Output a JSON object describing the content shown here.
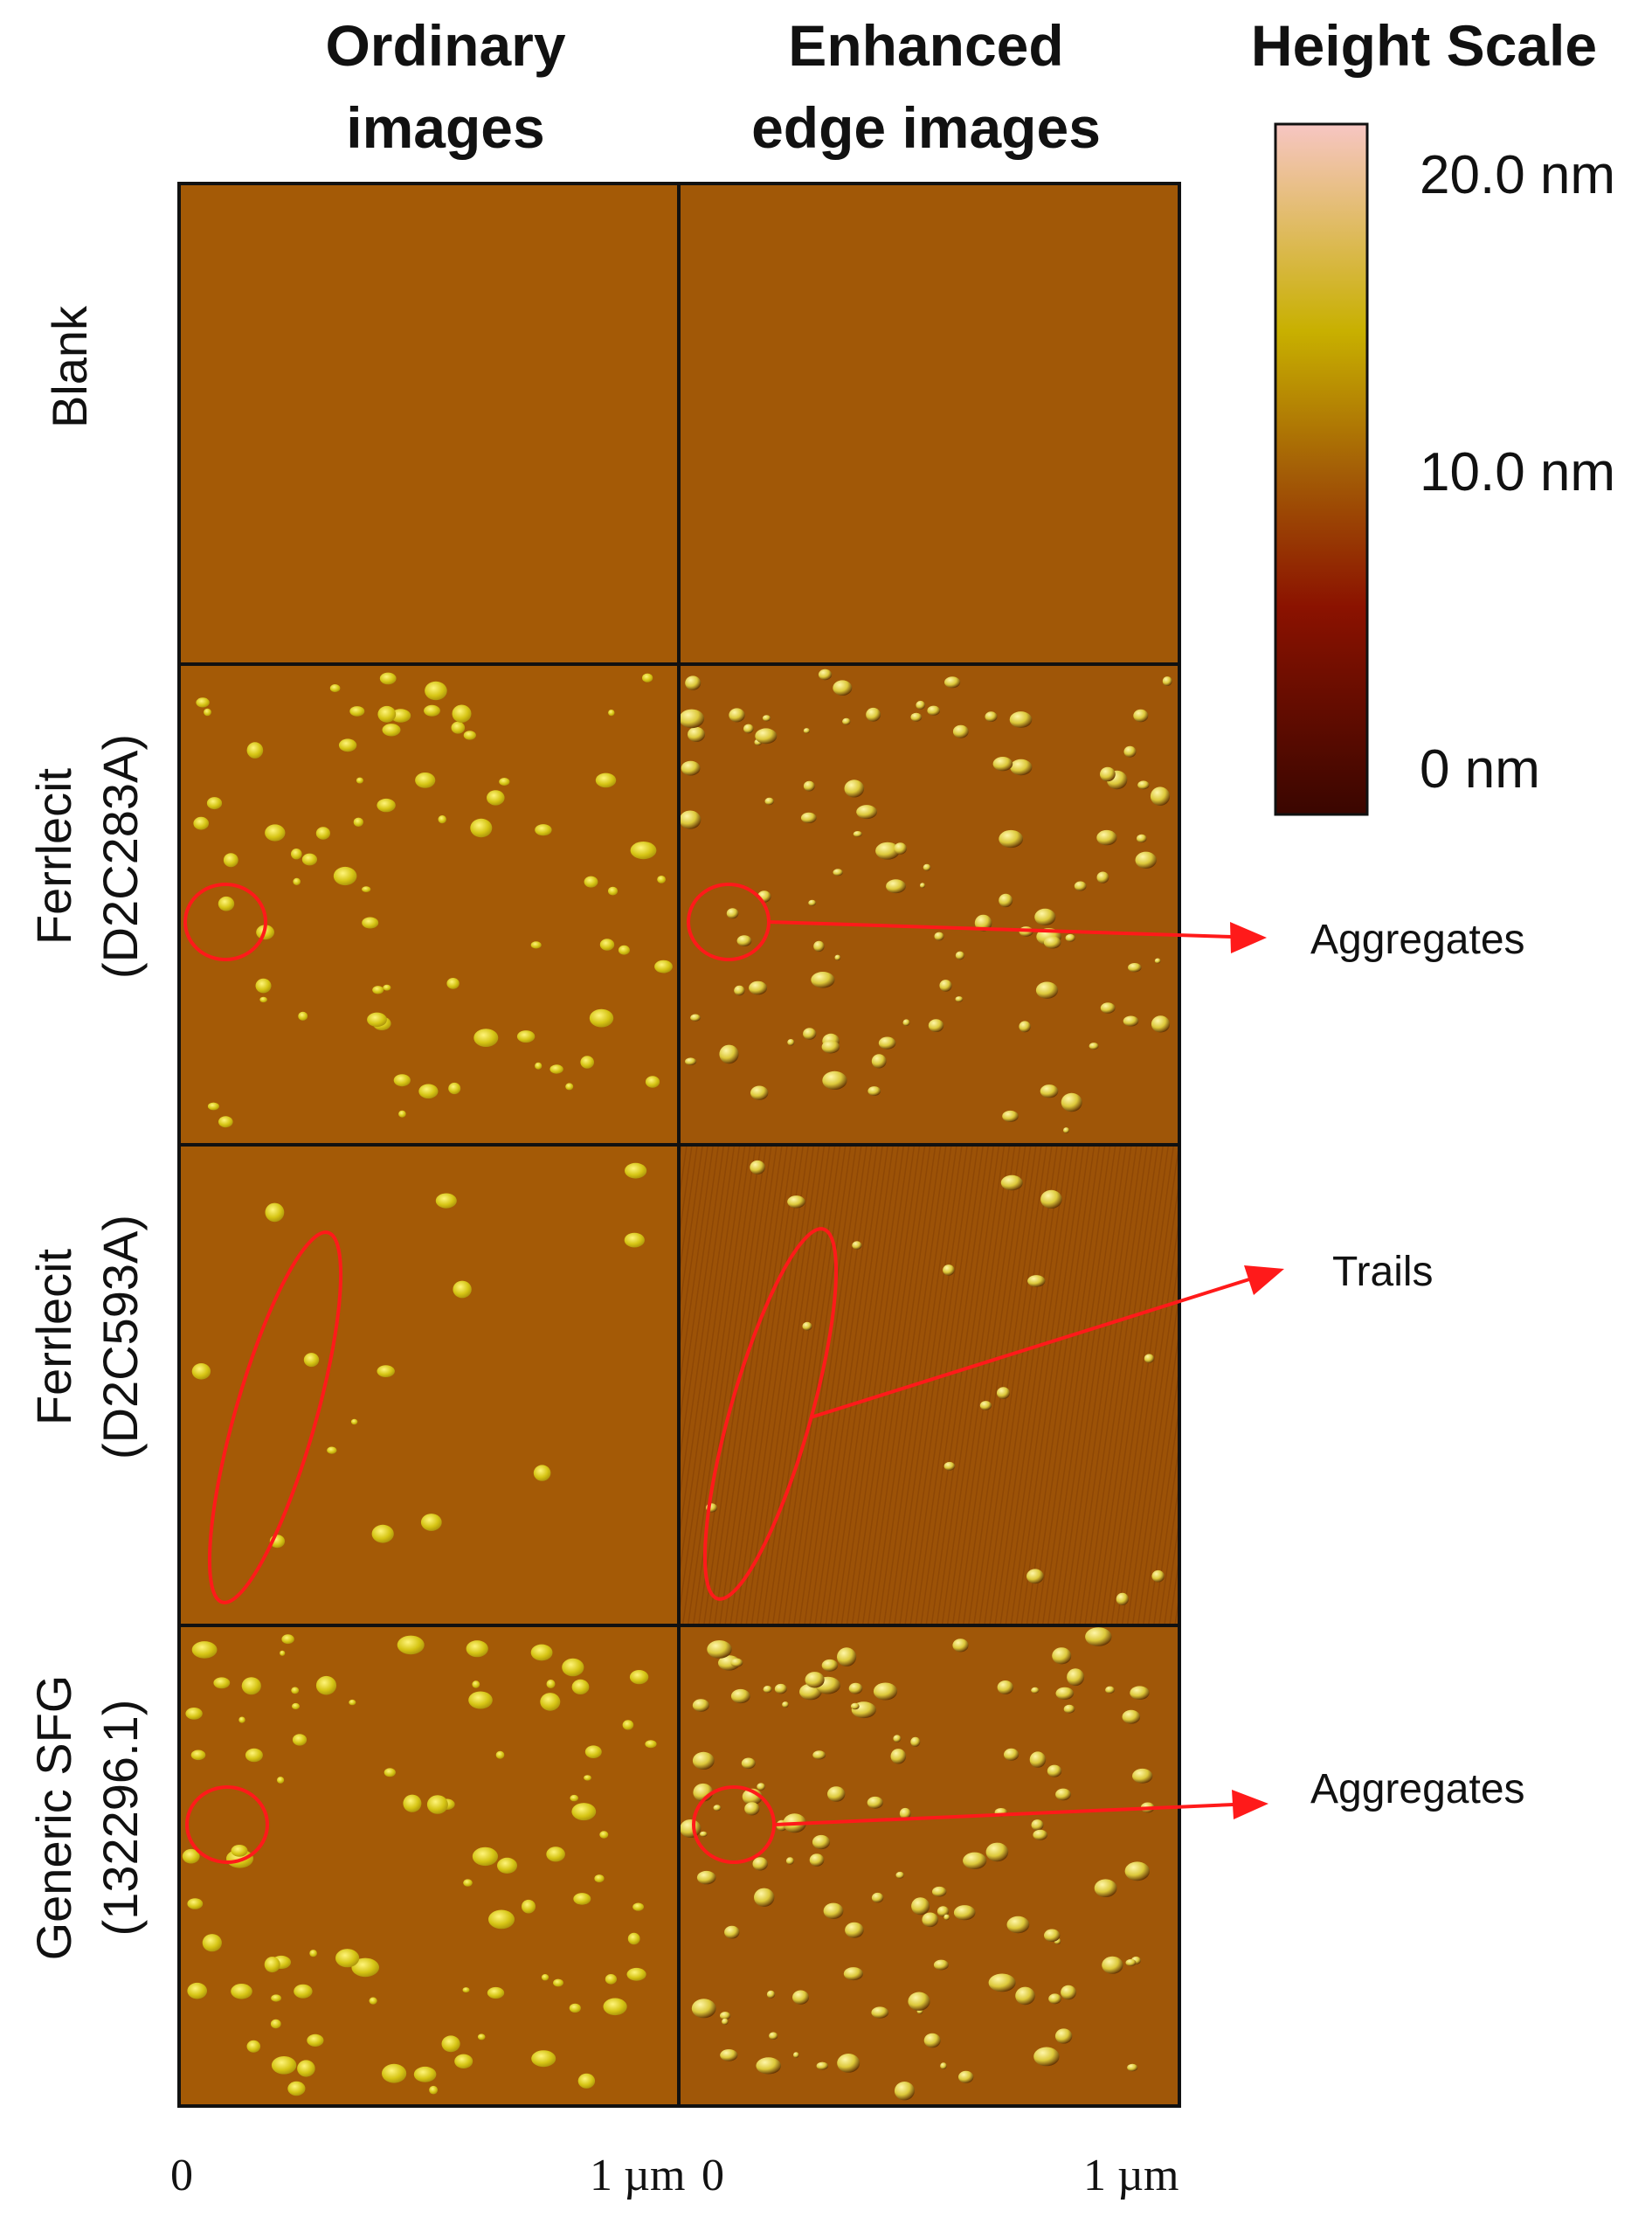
{
  "columns": {
    "ordinary": "Ordinary\nimages",
    "enhanced": "Enhanced\nedge images",
    "scale": "Height Scale"
  },
  "rows": {
    "blank": "Blank",
    "ferrlecit_1": "Ferrlecit\n(D2C283A)",
    "ferrlecit_2": "Ferrlecit\n(D2C593A)",
    "generic": "Generic SFG\n(132296.1)"
  },
  "height_scale": {
    "max_label": "20.0 nm",
    "mid_label": "10.0 nm",
    "min_label": "0 nm",
    "colors": [
      "#f7c6c3",
      "#c8b000",
      "#a45f06",
      "#8b1200",
      "#3a0600"
    ]
  },
  "x_axis": {
    "left_start": "0",
    "left_end": "1 µm",
    "right_start": "0",
    "right_end": "1 µm"
  },
  "annotations": {
    "aggregates_top": "Aggregates",
    "trails": "Trails",
    "aggregates_bottom": "Aggregates"
  },
  "colors": {
    "surface": "#a45a06",
    "surface_enhanced": "#9e5408",
    "particle": "#d6c515",
    "annotation": "#ff1a1a"
  }
}
